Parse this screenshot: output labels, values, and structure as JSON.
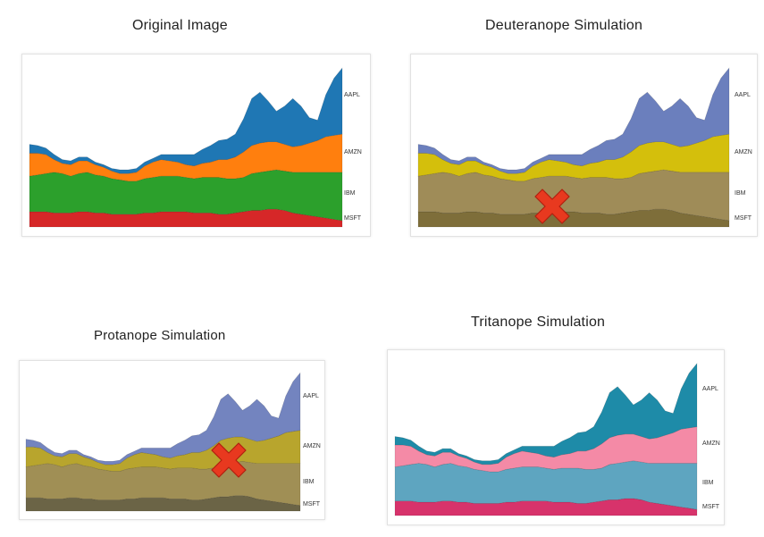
{
  "chart_data": [
    {
      "type": "area",
      "title": "Original Image",
      "series": [
        {
          "name": "MSFT",
          "color": "#d62728",
          "values": [
            12,
            12,
            12,
            11,
            11,
            11,
            12,
            12,
            11,
            11,
            10,
            10,
            10,
            10,
            11,
            11,
            12,
            12,
            12,
            12,
            11,
            11,
            11,
            10,
            10,
            11,
            12,
            13,
            13,
            14,
            14,
            13,
            11,
            10,
            9,
            8,
            7,
            6,
            5
          ]
        },
        {
          "name": "IBM",
          "color": "#2ca02c",
          "values": [
            28,
            29,
            30,
            32,
            31,
            29,
            30,
            31,
            30,
            29,
            28,
            27,
            26,
            26,
            27,
            28,
            28,
            28,
            28,
            27,
            27,
            28,
            28,
            29,
            28,
            27,
            27,
            29,
            30,
            30,
            31,
            31,
            32,
            33,
            34,
            35,
            36,
            37,
            38
          ]
        },
        {
          "name": "AMZN",
          "color": "#ff7f0e",
          "values": [
            18,
            17,
            15,
            10,
            8,
            9,
            10,
            9,
            8,
            7,
            6,
            5,
            6,
            7,
            10,
            12,
            13,
            12,
            11,
            10,
            10,
            11,
            12,
            14,
            15,
            17,
            20,
            22,
            23,
            23,
            22,
            21,
            20,
            21,
            23,
            25,
            28,
            29,
            30
          ]
        },
        {
          "name": "AAPL",
          "color": "#1f77b4",
          "values": [
            7,
            6,
            5,
            4,
            3,
            3,
            3,
            3,
            2,
            2,
            2,
            3,
            3,
            3,
            3,
            3,
            4,
            5,
            6,
            8,
            9,
            11,
            13,
            15,
            16,
            18,
            26,
            37,
            40,
            32,
            24,
            30,
            38,
            31,
            20,
            16,
            33,
            45,
            52
          ]
        }
      ]
    },
    {
      "type": "area",
      "title": "Deuteranope Simulation",
      "series": [
        {
          "name": "MSFT",
          "color": "#7e6e3a",
          "values": [
            12,
            12,
            12,
            11,
            11,
            11,
            12,
            12,
            11,
            11,
            10,
            10,
            10,
            10,
            11,
            11,
            12,
            12,
            12,
            12,
            11,
            11,
            11,
            10,
            10,
            11,
            12,
            13,
            13,
            14,
            14,
            13,
            11,
            10,
            9,
            8,
            7,
            6,
            5
          ]
        },
        {
          "name": "IBM",
          "color": "#9f8c58",
          "values": [
            28,
            29,
            30,
            32,
            31,
            29,
            30,
            31,
            30,
            29,
            28,
            27,
            26,
            26,
            27,
            28,
            28,
            28,
            28,
            27,
            27,
            28,
            28,
            29,
            28,
            27,
            27,
            29,
            30,
            30,
            31,
            31,
            32,
            33,
            34,
            35,
            36,
            37,
            38
          ]
        },
        {
          "name": "AMZN",
          "color": "#d4bf0c",
          "values": [
            18,
            17,
            15,
            10,
            8,
            9,
            10,
            9,
            8,
            7,
            6,
            5,
            6,
            7,
            10,
            12,
            13,
            12,
            11,
            10,
            10,
            11,
            12,
            14,
            15,
            17,
            20,
            22,
            23,
            23,
            22,
            21,
            20,
            21,
            23,
            25,
            28,
            29,
            30
          ]
        },
        {
          "name": "AAPL",
          "color": "#6b7fbd",
          "values": [
            7,
            6,
            5,
            4,
            3,
            3,
            3,
            3,
            2,
            2,
            2,
            3,
            3,
            3,
            3,
            3,
            4,
            5,
            6,
            8,
            9,
            11,
            13,
            15,
            16,
            18,
            26,
            37,
            40,
            32,
            24,
            30,
            38,
            31,
            20,
            16,
            33,
            45,
            52
          ]
        }
      ]
    },
    {
      "type": "area",
      "title": "Protanope Simulation",
      "series": [
        {
          "name": "MSFT",
          "color": "#6b6446",
          "values": [
            12,
            12,
            12,
            11,
            11,
            11,
            12,
            12,
            11,
            11,
            10,
            10,
            10,
            10,
            11,
            11,
            12,
            12,
            12,
            12,
            11,
            11,
            11,
            10,
            10,
            11,
            12,
            13,
            13,
            14,
            14,
            13,
            11,
            10,
            9,
            8,
            7,
            6,
            5
          ]
        },
        {
          "name": "IBM",
          "color": "#a08f55",
          "values": [
            28,
            29,
            30,
            32,
            31,
            29,
            30,
            31,
            30,
            29,
            28,
            27,
            26,
            26,
            27,
            28,
            28,
            28,
            28,
            27,
            27,
            28,
            28,
            29,
            28,
            27,
            27,
            29,
            30,
            30,
            31,
            31,
            32,
            33,
            34,
            35,
            36,
            37,
            38
          ]
        },
        {
          "name": "AMZN",
          "color": "#b8a52d",
          "values": [
            18,
            17,
            15,
            10,
            8,
            9,
            10,
            9,
            8,
            7,
            6,
            5,
            6,
            7,
            10,
            12,
            13,
            12,
            11,
            10,
            10,
            11,
            12,
            14,
            15,
            17,
            20,
            22,
            23,
            23,
            22,
            21,
            20,
            21,
            23,
            25,
            28,
            29,
            30
          ]
        },
        {
          "name": "AAPL",
          "color": "#7384bf",
          "values": [
            7,
            6,
            5,
            4,
            3,
            3,
            3,
            3,
            2,
            2,
            2,
            3,
            3,
            3,
            3,
            3,
            4,
            5,
            6,
            8,
            9,
            11,
            13,
            15,
            16,
            18,
            26,
            37,
            40,
            32,
            24,
            30,
            38,
            31,
            20,
            16,
            33,
            45,
            52
          ]
        }
      ]
    },
    {
      "type": "area",
      "title": "Tritanope Simulation",
      "series": [
        {
          "name": "MSFT",
          "color": "#d7336b",
          "values": [
            12,
            12,
            12,
            11,
            11,
            11,
            12,
            12,
            11,
            11,
            10,
            10,
            10,
            10,
            11,
            11,
            12,
            12,
            12,
            12,
            11,
            11,
            11,
            10,
            10,
            11,
            12,
            13,
            13,
            14,
            14,
            13,
            11,
            10,
            9,
            8,
            7,
            6,
            5
          ]
        },
        {
          "name": "IBM",
          "color": "#5ea5c0",
          "values": [
            28,
            29,
            30,
            32,
            31,
            29,
            30,
            31,
            30,
            29,
            28,
            27,
            26,
            26,
            27,
            28,
            28,
            28,
            28,
            27,
            27,
            28,
            28,
            29,
            28,
            27,
            27,
            29,
            30,
            30,
            31,
            31,
            32,
            33,
            34,
            35,
            36,
            37,
            38
          ]
        },
        {
          "name": "AMZN",
          "color": "#f48aa6",
          "values": [
            18,
            17,
            15,
            10,
            8,
            9,
            10,
            9,
            8,
            7,
            6,
            5,
            6,
            7,
            10,
            12,
            13,
            12,
            11,
            10,
            10,
            11,
            12,
            14,
            15,
            17,
            20,
            22,
            23,
            23,
            22,
            21,
            20,
            21,
            23,
            25,
            28,
            29,
            30
          ]
        },
        {
          "name": "AAPL",
          "color": "#1e8ba8",
          "values": [
            7,
            6,
            5,
            4,
            3,
            3,
            3,
            3,
            2,
            2,
            2,
            3,
            3,
            3,
            3,
            3,
            4,
            5,
            6,
            8,
            9,
            11,
            13,
            15,
            16,
            18,
            26,
            37,
            40,
            32,
            24,
            30,
            38,
            31,
            20,
            16,
            33,
            45,
            52
          ]
        }
      ]
    }
  ],
  "marks": {
    "x_mark_color": "#e8391f",
    "x_mark_icon": "x-mark-icon"
  }
}
